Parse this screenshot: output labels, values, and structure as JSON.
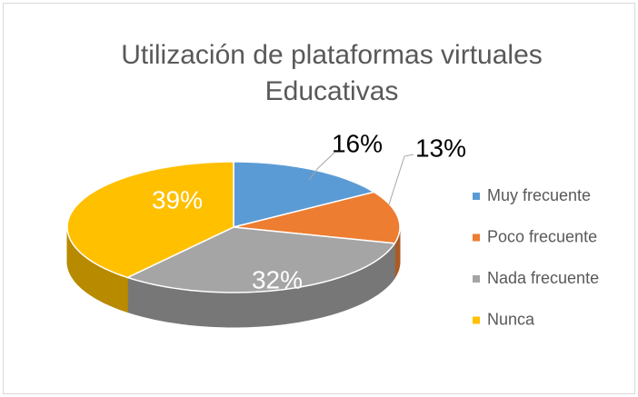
{
  "chart_data": {
    "type": "pie3d",
    "title": "Utilización de plataformas virtuales Educativas",
    "categories": [
      "Muy frecuente",
      "Poco frecuente",
      "Nada frecuente",
      "Nunca"
    ],
    "values": [
      16,
      13,
      32,
      39
    ],
    "value_labels": [
      "16%",
      "13%",
      "32%",
      "39%"
    ],
    "colors": [
      "#5b9bd5",
      "#ed7d31",
      "#a5a5a5",
      "#ffc000"
    ],
    "legend": "right"
  }
}
